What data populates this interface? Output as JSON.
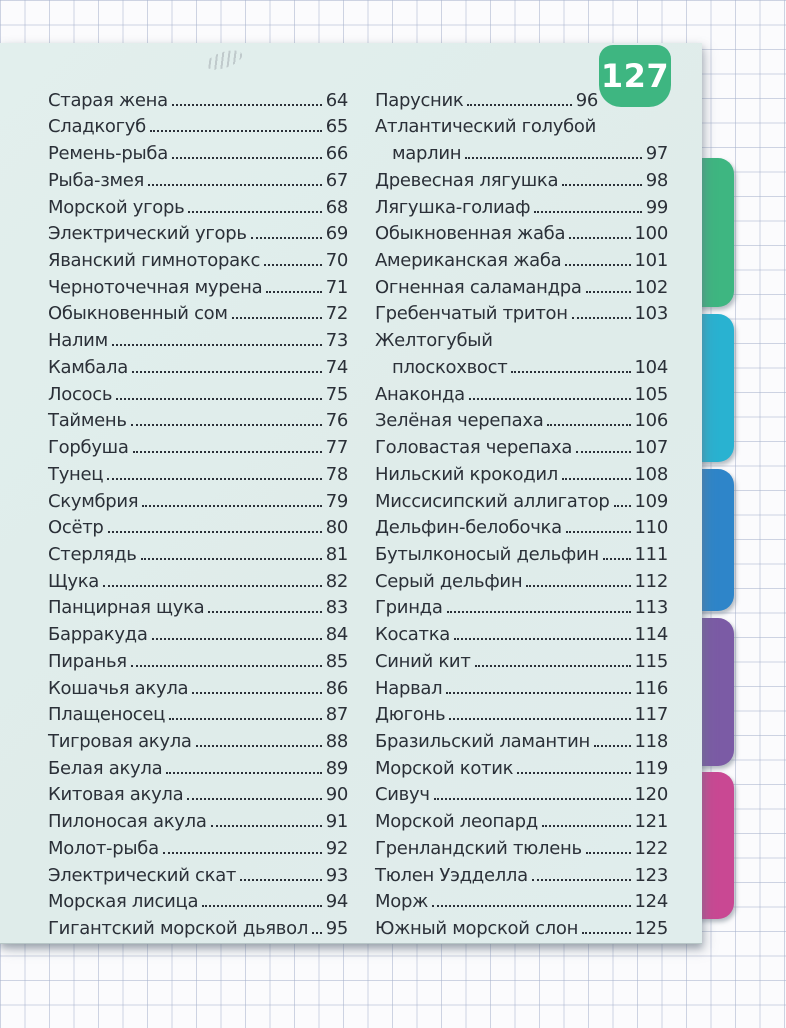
{
  "page": {
    "badge": "127"
  },
  "colors": {
    "badge": "#3eb681",
    "paper": "#dfecea",
    "text": "#2b3038",
    "grid_line": "#a8b2cd"
  },
  "tabs": [
    {
      "name": "green",
      "color": "#3eb681"
    },
    {
      "name": "cyan",
      "color": "#29b2d1"
    },
    {
      "name": "blue",
      "color": "#2e85c9"
    },
    {
      "name": "purple",
      "color": "#7b5ba5"
    },
    {
      "name": "magenta",
      "color": "#c94893"
    }
  ],
  "toc": {
    "left": [
      {
        "t": "Старая жена",
        "p": "64"
      },
      {
        "t": "Сладкогуб",
        "p": "65"
      },
      {
        "t": "Ремень-рыба",
        "p": "66"
      },
      {
        "t": "Рыба-змея",
        "p": "67"
      },
      {
        "t": "Морской угорь",
        "p": "68"
      },
      {
        "t": "Электрический угорь",
        "p": "69"
      },
      {
        "t": "Яванский гимноторакс",
        "p": "70"
      },
      {
        "t": "Черноточечная мурена",
        "p": "71"
      },
      {
        "t": "Обыкновенный сом",
        "p": "72"
      },
      {
        "t": "Налим",
        "p": "73"
      },
      {
        "t": "Камбала",
        "p": "74"
      },
      {
        "t": "Лосось",
        "p": "75"
      },
      {
        "t": "Таймень",
        "p": "76"
      },
      {
        "t": "Горбуша",
        "p": "77"
      },
      {
        "t": "Тунец",
        "p": "78"
      },
      {
        "t": "Скумбрия",
        "p": "79"
      },
      {
        "t": "Осётр",
        "p": "80"
      },
      {
        "t": "Стерлядь",
        "p": "81"
      },
      {
        "t": "Щука",
        "p": "82"
      },
      {
        "t": "Панцирная щука",
        "p": "83"
      },
      {
        "t": "Барракуда",
        "p": "84"
      },
      {
        "t": "Пиранья",
        "p": "85"
      },
      {
        "t": "Кошачья акула",
        "p": "86"
      },
      {
        "t": "Плащеносец",
        "p": "87"
      },
      {
        "t": "Тигровая акула",
        "p": "88"
      },
      {
        "t": "Белая акула",
        "p": "89"
      },
      {
        "t": "Китовая акула",
        "p": "90"
      },
      {
        "t": "Пилоносая акула",
        "p": "91"
      },
      {
        "t": "Молот-рыба",
        "p": "92"
      },
      {
        "t": "Электрический скат",
        "p": "93"
      },
      {
        "t": "Морская лисица",
        "p": "94"
      },
      {
        "t": "Гигантский морской дьявол",
        "p": "95"
      }
    ],
    "right": [
      {
        "t": "Парусник",
        "p": "96"
      },
      {
        "t": "Атлантический голубой",
        "t2": "марлин",
        "p": "97"
      },
      {
        "t": "Древесная лягушка",
        "p": "98"
      },
      {
        "t": "Лягушка-голиаф",
        "p": "99"
      },
      {
        "t": "Обыкновенная жаба",
        "p": "100"
      },
      {
        "t": "Американская жаба",
        "p": "101"
      },
      {
        "t": "Огненная саламандра",
        "p": "102"
      },
      {
        "t": "Гребенчатый тритон",
        "p": "103"
      },
      {
        "t": "Желтогубый",
        "t2": "плоскохвост",
        "p": "104"
      },
      {
        "t": "Анаконда",
        "p": "105"
      },
      {
        "t": "Зелёная черепаха",
        "p": "106"
      },
      {
        "t": "Головастая черепаха",
        "p": "107"
      },
      {
        "t": "Нильский крокодил",
        "p": "108"
      },
      {
        "t": "Миссисипский аллигатор",
        "p": "109"
      },
      {
        "t": "Дельфин-белобочка",
        "p": "110"
      },
      {
        "t": "Бутылконосый дельфин",
        "p": "111"
      },
      {
        "t": "Серый дельфин",
        "p": "112"
      },
      {
        "t": "Гринда",
        "p": "113"
      },
      {
        "t": "Косатка",
        "p": "114"
      },
      {
        "t": "Синий кит",
        "p": "115"
      },
      {
        "t": "Нарвал",
        "p": "116"
      },
      {
        "t": "Дюгонь",
        "p": "117"
      },
      {
        "t": "Бразильский ламантин",
        "p": "118"
      },
      {
        "t": "Морской котик",
        "p": "119"
      },
      {
        "t": "Сивуч",
        "p": "120"
      },
      {
        "t": "Морской леопард",
        "p": "121"
      },
      {
        "t": "Гренландский тюлень",
        "p": "122"
      },
      {
        "t": "Тюлен Уэдделла",
        "p": "123"
      },
      {
        "t": "Морж",
        "p": "124"
      },
      {
        "t": "Южный морской слон",
        "p": "125"
      }
    ]
  }
}
